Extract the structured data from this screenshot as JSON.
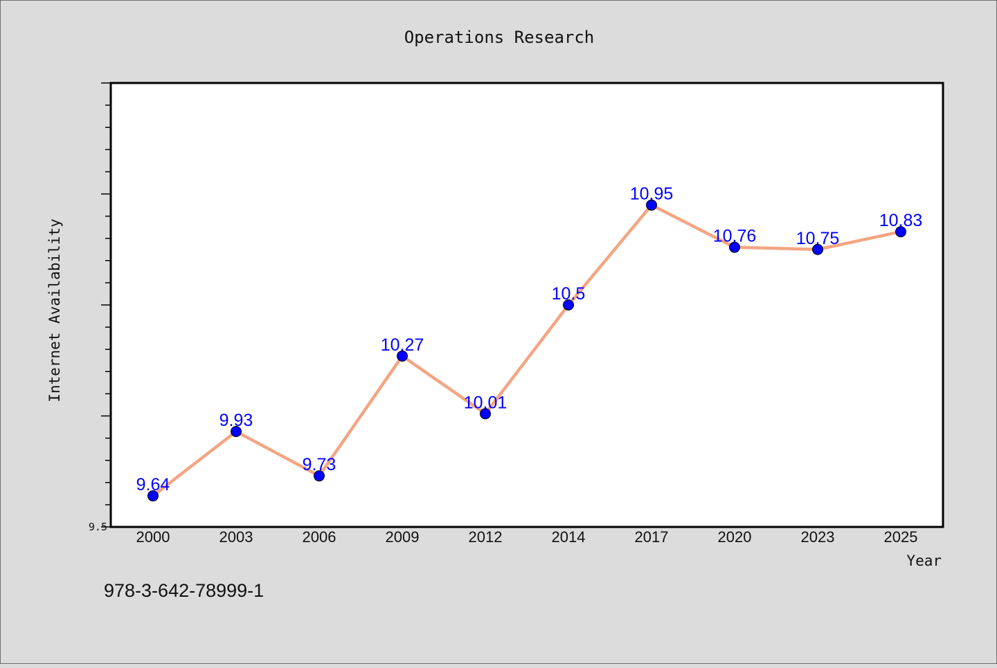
{
  "chart_data": {
    "type": "line",
    "title": "Operations Research",
    "xlabel": "Year",
    "ylabel": "Internet Availability",
    "categories": [
      "2000",
      "2003",
      "2006",
      "2009",
      "2012",
      "2014",
      "2017",
      "2020",
      "2023",
      "2025"
    ],
    "series": [
      {
        "values": [
          9.64,
          9.93,
          9.73,
          10.27,
          10.01,
          10.5,
          10.95,
          10.76,
          10.75,
          10.83
        ],
        "data_labels": [
          "9.64",
          "9.93",
          "9.73",
          "10.27",
          "10.01",
          "10.5",
          "10.95",
          "10.76",
          "10.75",
          "10.83"
        ]
      }
    ],
    "ylim": [
      9.5,
      11.5
    ],
    "y_tick_labels": [
      {
        "value": 9.5,
        "label": "9.5"
      }
    ],
    "grid": false,
    "colors": {
      "line": "#f4a582",
      "marker": "#0000ff",
      "data_label": "#0000ff",
      "plot_background": "#ffffff",
      "page_background": "#dcdcdc"
    }
  },
  "footer": {
    "isbn": "978-3-642-78999-1"
  }
}
